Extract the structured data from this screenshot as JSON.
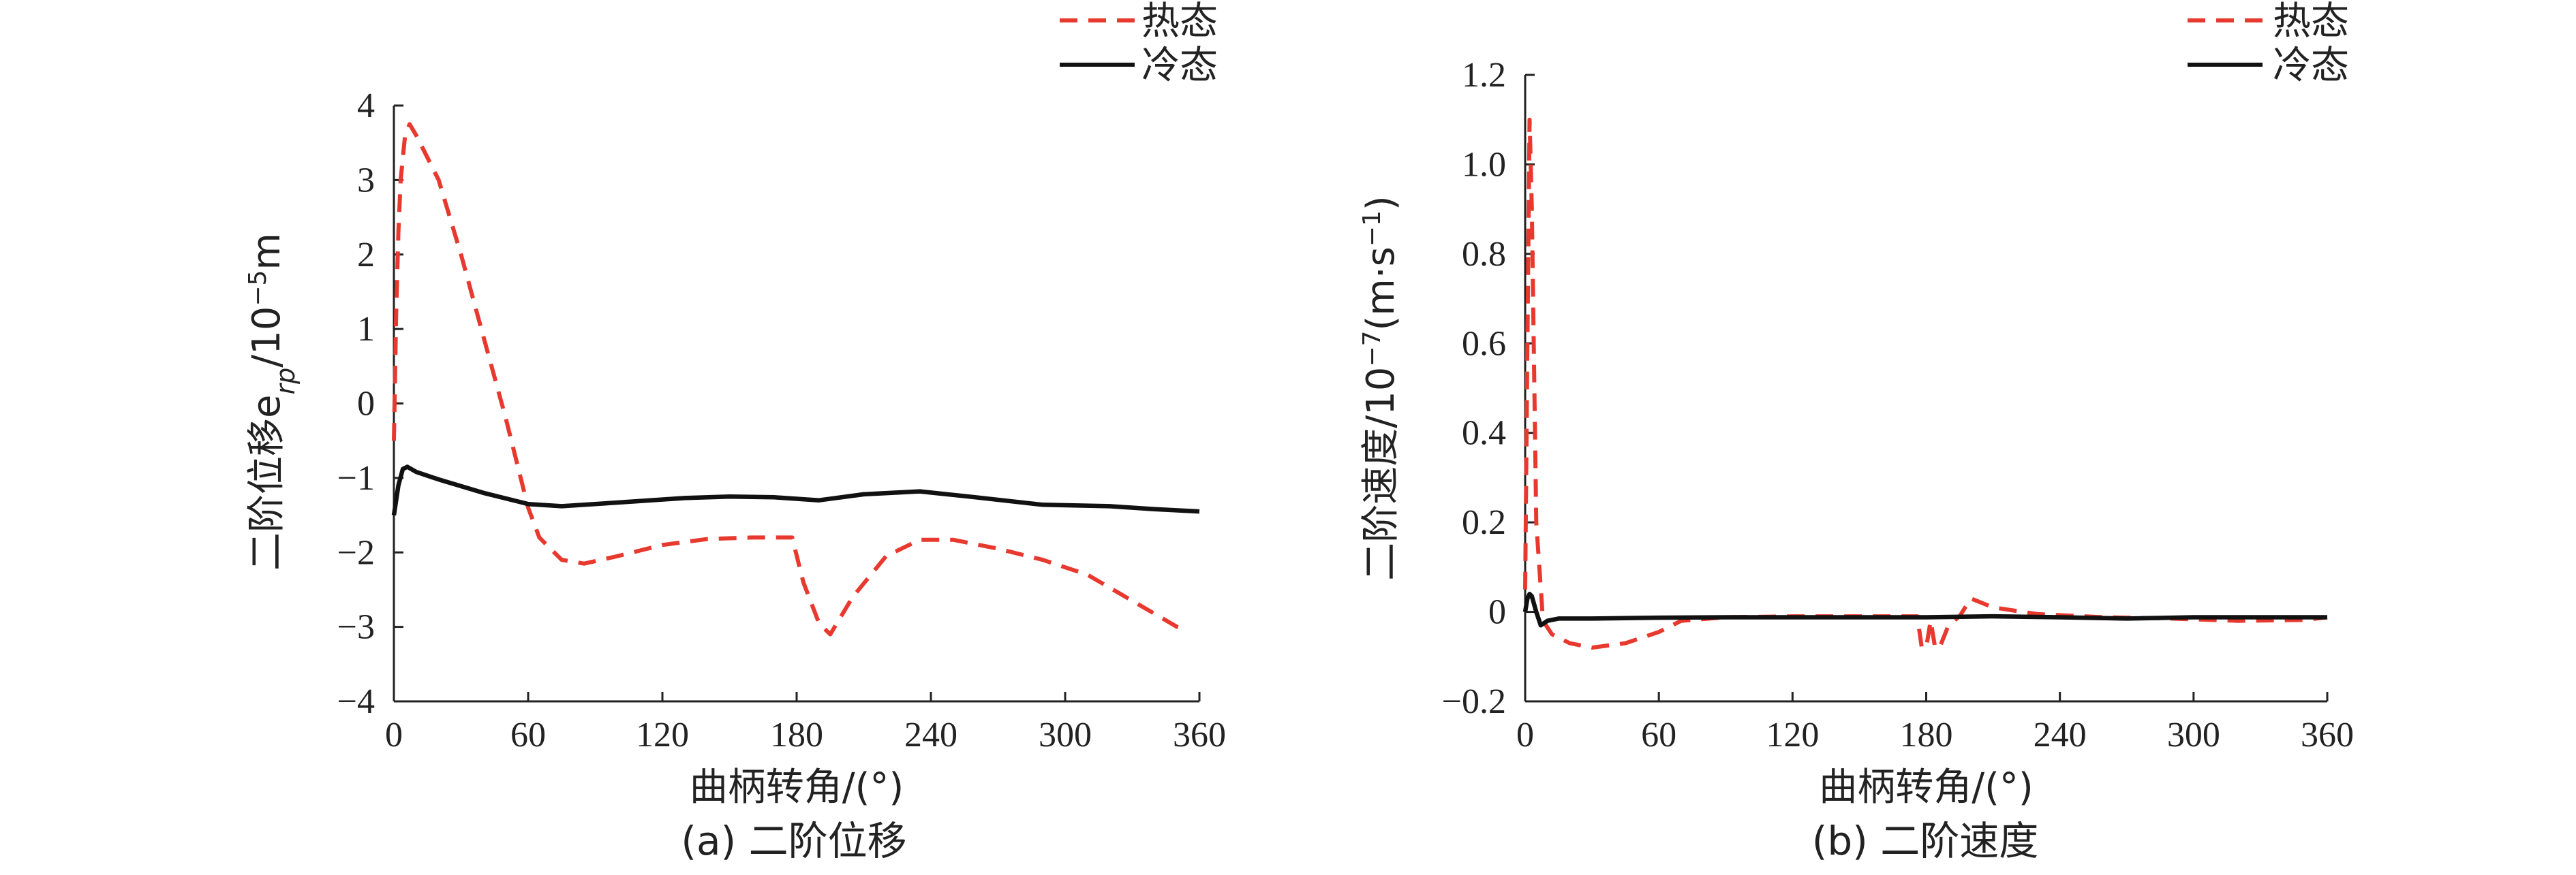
{
  "chart_data": [
    {
      "type": "line",
      "caption": "(a) 二阶位移",
      "xlabel": "曲柄转角/(°)",
      "ylabel": "二阶位移e",
      "ylabel_sub": "rp",
      "ylabel_unit": "/10",
      "ylabel_exp": "−5",
      "ylabel_unit_tail": "m",
      "xlim": [
        0,
        360
      ],
      "ylim": [
        -4,
        4
      ],
      "xticks": [
        "0",
        "60",
        "120",
        "180",
        "240",
        "300",
        "360"
      ],
      "xtick_values": [
        0,
        60,
        120,
        180,
        240,
        300,
        360
      ],
      "yticks": [
        "−4",
        "−3",
        "−2",
        "−1",
        "0",
        "1",
        "2",
        "3",
        "4"
      ],
      "ytick_values": [
        -4,
        -3,
        -2,
        -1,
        0,
        1,
        2,
        3,
        4
      ],
      "series": [
        {
          "name": "热态",
          "color": "#e8392f",
          "dash": true,
          "points": [
            [
              0,
              -0.5
            ],
            [
              1,
              1.2
            ],
            [
              2,
              2.3
            ],
            [
              3,
              3.0
            ],
            [
              5,
              3.6
            ],
            [
              7,
              3.75
            ],
            [
              10,
              3.6
            ],
            [
              15,
              3.3
            ],
            [
              20,
              3.0
            ],
            [
              30,
              2.0
            ],
            [
              40,
              0.9
            ],
            [
              50,
              -0.2
            ],
            [
              55,
              -0.8
            ],
            [
              60,
              -1.4
            ],
            [
              65,
              -1.8
            ],
            [
              75,
              -2.1
            ],
            [
              85,
              -2.15
            ],
            [
              100,
              -2.05
            ],
            [
              120,
              -1.9
            ],
            [
              140,
              -1.82
            ],
            [
              160,
              -1.8
            ],
            [
              178,
              -1.8
            ],
            [
              183,
              -2.4
            ],
            [
              190,
              -2.95
            ],
            [
              195,
              -3.1
            ],
            [
              205,
              -2.6
            ],
            [
              220,
              -2.05
            ],
            [
              235,
              -1.83
            ],
            [
              250,
              -1.83
            ],
            [
              270,
              -1.95
            ],
            [
              290,
              -2.1
            ],
            [
              310,
              -2.3
            ],
            [
              330,
              -2.65
            ],
            [
              350,
              -3.0
            ],
            [
              355,
              -3.05
            ]
          ]
        },
        {
          "name": "冷态",
          "color": "#111111",
          "dash": false,
          "points": [
            [
              0,
              -1.5
            ],
            [
              2,
              -1.1
            ],
            [
              4,
              -0.88
            ],
            [
              6,
              -0.85
            ],
            [
              10,
              -0.92
            ],
            [
              20,
              -1.02
            ],
            [
              40,
              -1.2
            ],
            [
              60,
              -1.35
            ],
            [
              75,
              -1.38
            ],
            [
              100,
              -1.33
            ],
            [
              130,
              -1.27
            ],
            [
              150,
              -1.25
            ],
            [
              170,
              -1.26
            ],
            [
              190,
              -1.3
            ],
            [
              210,
              -1.22
            ],
            [
              235,
              -1.18
            ],
            [
              260,
              -1.26
            ],
            [
              290,
              -1.36
            ],
            [
              320,
              -1.38
            ],
            [
              340,
              -1.42
            ],
            [
              360,
              -1.45
            ]
          ]
        }
      ],
      "legend": [
        "热态",
        "冷态"
      ]
    },
    {
      "type": "line",
      "caption": "(b) 二阶速度",
      "xlabel": "曲柄转角/(°)",
      "ylabel": "二阶速度/10",
      "ylabel_exp": "−7",
      "ylabel_unit_tail": "(m·s",
      "ylabel_exp2": "−1",
      "ylabel_close": ")",
      "xlim": [
        0,
        360
      ],
      "ylim": [
        -0.2,
        1.2
      ],
      "xticks": [
        "0",
        "60",
        "120",
        "180",
        "240",
        "300",
        "360"
      ],
      "xtick_values": [
        0,
        60,
        120,
        180,
        240,
        300,
        360
      ],
      "yticks": [
        "−0.2",
        "0",
        "0.2",
        "0.4",
        "0.6",
        "0.8",
        "1.0",
        "1.2"
      ],
      "ytick_values": [
        -0.2,
        0,
        0.2,
        0.4,
        0.6,
        0.8,
        1.0,
        1.2
      ],
      "series": [
        {
          "name": "热态",
          "color": "#e8392f",
          "dash": true,
          "points": [
            [
              0,
              0.05
            ],
            [
              1,
              0.6
            ],
            [
              2,
              1.1
            ],
            [
              3,
              0.9
            ],
            [
              5,
              0.2
            ],
            [
              8,
              -0.02
            ],
            [
              12,
              -0.05
            ],
            [
              20,
              -0.07
            ],
            [
              30,
              -0.08
            ],
            [
              45,
              -0.07
            ],
            [
              60,
              -0.045
            ],
            [
              70,
              -0.02
            ],
            [
              90,
              -0.012
            ],
            [
              120,
              -0.01
            ],
            [
              150,
              -0.01
            ],
            [
              176,
              -0.01
            ],
            [
              178,
              -0.08
            ],
            [
              180,
              -0.08
            ],
            [
              182,
              -0.02
            ],
            [
              184,
              -0.08
            ],
            [
              186,
              -0.08
            ],
            [
              190,
              -0.03
            ],
            [
              195,
              -0.01
            ],
            [
              200,
              0.03
            ],
            [
              210,
              0.01
            ],
            [
              230,
              -0.005
            ],
            [
              260,
              -0.012
            ],
            [
              290,
              -0.015
            ],
            [
              320,
              -0.02
            ],
            [
              350,
              -0.018
            ],
            [
              360,
              -0.012
            ]
          ]
        },
        {
          "name": "冷态",
          "color": "#111111",
          "dash": false,
          "points": [
            [
              0,
              0.0
            ],
            [
              1,
              0.03
            ],
            [
              2,
              0.04
            ],
            [
              3,
              0.035
            ],
            [
              5,
              0.0
            ],
            [
              7,
              -0.03
            ],
            [
              10,
              -0.02
            ],
            [
              15,
              -0.015
            ],
            [
              30,
              -0.015
            ],
            [
              60,
              -0.013
            ],
            [
              90,
              -0.012
            ],
            [
              120,
              -0.012
            ],
            [
              150,
              -0.012
            ],
            [
              180,
              -0.012
            ],
            [
              210,
              -0.01
            ],
            [
              240,
              -0.012
            ],
            [
              270,
              -0.015
            ],
            [
              300,
              -0.012
            ],
            [
              330,
              -0.012
            ],
            [
              360,
              -0.012
            ]
          ]
        }
      ],
      "legend": [
        "热态",
        "冷态"
      ]
    }
  ]
}
